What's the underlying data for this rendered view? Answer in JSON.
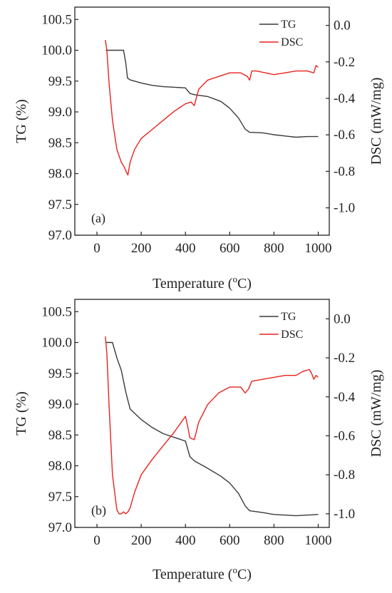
{
  "chart_data": [
    {
      "type": "line",
      "panel_label": "(a)",
      "xlabel": "Temperature (°C)",
      "xlabel_main": "Temperature (",
      "xlabel_sup": "o",
      "xlabel_end": "C)",
      "ylabel": "TG (%)",
      "y2label": "DSC (mW/mg)",
      "xlim": [
        -100,
        1050
      ],
      "ylim": [
        97.0,
        100.7
      ],
      "y2lim": [
        -1.15,
        0.1
      ],
      "xticks": [
        0,
        200,
        400,
        600,
        800,
        1000
      ],
      "xtick_labels": [
        "0",
        "200",
        "400",
        "600",
        "800",
        "1000"
      ],
      "yticks": [
        97.0,
        97.5,
        98.0,
        98.5,
        99.0,
        99.5,
        100.0,
        100.5
      ],
      "ytick_labels": [
        "97.0",
        "97.5",
        "98.0",
        "98.5",
        "99.0",
        "99.5",
        "100.0",
        "100.5"
      ],
      "y2ticks": [
        0.0,
        -0.2,
        -0.4,
        -0.6,
        -0.8,
        -1.0
      ],
      "y2tick_labels": [
        "0.0",
        "-0.2",
        "-0.4",
        "-0.6",
        "-0.8",
        "-1.0"
      ],
      "legend_position": "top-right",
      "series": [
        {
          "name": "TG",
          "axis": "left",
          "color": "#3a3a3a",
          "x": [
            40,
            80,
            120,
            130,
            138,
            150,
            200,
            250,
            300,
            350,
            400,
            420,
            440,
            500,
            560,
            600,
            640,
            670,
            690,
            750,
            800,
            850,
            900,
            950,
            1000
          ],
          "y": [
            100.0,
            100.0,
            100.0,
            99.8,
            99.55,
            99.52,
            99.47,
            99.43,
            99.41,
            99.4,
            99.39,
            99.3,
            99.28,
            99.25,
            99.17,
            99.06,
            98.9,
            98.72,
            98.67,
            98.66,
            98.63,
            98.61,
            98.59,
            98.6,
            98.6
          ]
        },
        {
          "name": "DSC",
          "axis": "right",
          "color": "#e8231e",
          "x": [
            38,
            45,
            55,
            70,
            90,
            110,
            125,
            135,
            140,
            150,
            170,
            200,
            250,
            300,
            350,
            400,
            425,
            440,
            460,
            500,
            550,
            600,
            650,
            680,
            690,
            700,
            720,
            800,
            850,
            900,
            950,
            980,
            990,
            1000
          ],
          "y": [
            -0.08,
            -0.14,
            -0.32,
            -0.52,
            -0.68,
            -0.75,
            -0.78,
            -0.81,
            -0.82,
            -0.75,
            -0.68,
            -0.62,
            -0.57,
            -0.52,
            -0.47,
            -0.43,
            -0.42,
            -0.44,
            -0.35,
            -0.3,
            -0.28,
            -0.26,
            -0.26,
            -0.28,
            -0.3,
            -0.25,
            -0.25,
            -0.27,
            -0.26,
            -0.25,
            -0.25,
            -0.26,
            -0.22,
            -0.23
          ]
        }
      ]
    },
    {
      "type": "line",
      "panel_label": "(b)",
      "xlabel": "Temperature (°C)",
      "xlabel_main": "Temperature (",
      "xlabel_sup": "o",
      "xlabel_end": "C)",
      "ylabel": "TG (%)",
      "y2label": "DSC (mW/mg)",
      "xlim": [
        -100,
        1050
      ],
      "ylim": [
        97.0,
        100.7
      ],
      "y2lim": [
        -1.07,
        0.1
      ],
      "xticks": [
        0,
        200,
        400,
        600,
        800,
        1000
      ],
      "xtick_labels": [
        "0",
        "200",
        "400",
        "600",
        "800",
        "1000"
      ],
      "yticks": [
        97.0,
        97.5,
        98.0,
        98.5,
        99.0,
        99.5,
        100.0,
        100.5
      ],
      "ytick_labels": [
        "97.0",
        "97.5",
        "98.0",
        "98.5",
        "99.0",
        "99.5",
        "100.0",
        "100.5"
      ],
      "y2ticks": [
        0.0,
        -0.2,
        -0.4,
        -0.6,
        -0.8,
        -1.0
      ],
      "y2tick_labels": [
        "0.0",
        "-0.2",
        "-0.4",
        "-0.6",
        "-0.8",
        "-1.0"
      ],
      "legend_position": "top-right",
      "series": [
        {
          "name": "TG",
          "axis": "left",
          "color": "#3a3a3a",
          "x": [
            40,
            70,
            90,
            110,
            130,
            150,
            200,
            250,
            300,
            350,
            400,
            420,
            440,
            500,
            560,
            600,
            640,
            670,
            690,
            750,
            800,
            850,
            900,
            950,
            1000
          ],
          "y": [
            100.0,
            100.0,
            99.75,
            99.55,
            99.2,
            98.92,
            98.75,
            98.62,
            98.52,
            98.46,
            98.4,
            98.15,
            98.08,
            97.96,
            97.83,
            97.72,
            97.55,
            97.35,
            97.27,
            97.24,
            97.21,
            97.2,
            97.19,
            97.2,
            97.21
          ]
        },
        {
          "name": "DSC",
          "axis": "right",
          "color": "#e8231e",
          "x": [
            38,
            45,
            55,
            70,
            90,
            100,
            110,
            120,
            130,
            140,
            150,
            170,
            200,
            250,
            300,
            350,
            400,
            410,
            420,
            440,
            460,
            500,
            550,
            600,
            650,
            670,
            685,
            700,
            750,
            800,
            850,
            900,
            930,
            960,
            970,
            980,
            990,
            1000
          ],
          "y": [
            -0.09,
            -0.18,
            -0.45,
            -0.8,
            -0.98,
            -1.0,
            -1.0,
            -0.99,
            -1.0,
            -0.99,
            -0.97,
            -0.89,
            -0.8,
            -0.72,
            -0.65,
            -0.58,
            -0.5,
            -0.55,
            -0.61,
            -0.62,
            -0.53,
            -0.44,
            -0.38,
            -0.35,
            -0.35,
            -0.38,
            -0.36,
            -0.32,
            -0.31,
            -0.3,
            -0.29,
            -0.29,
            -0.27,
            -0.26,
            -0.28,
            -0.31,
            -0.29,
            -0.3
          ]
        }
      ]
    }
  ]
}
